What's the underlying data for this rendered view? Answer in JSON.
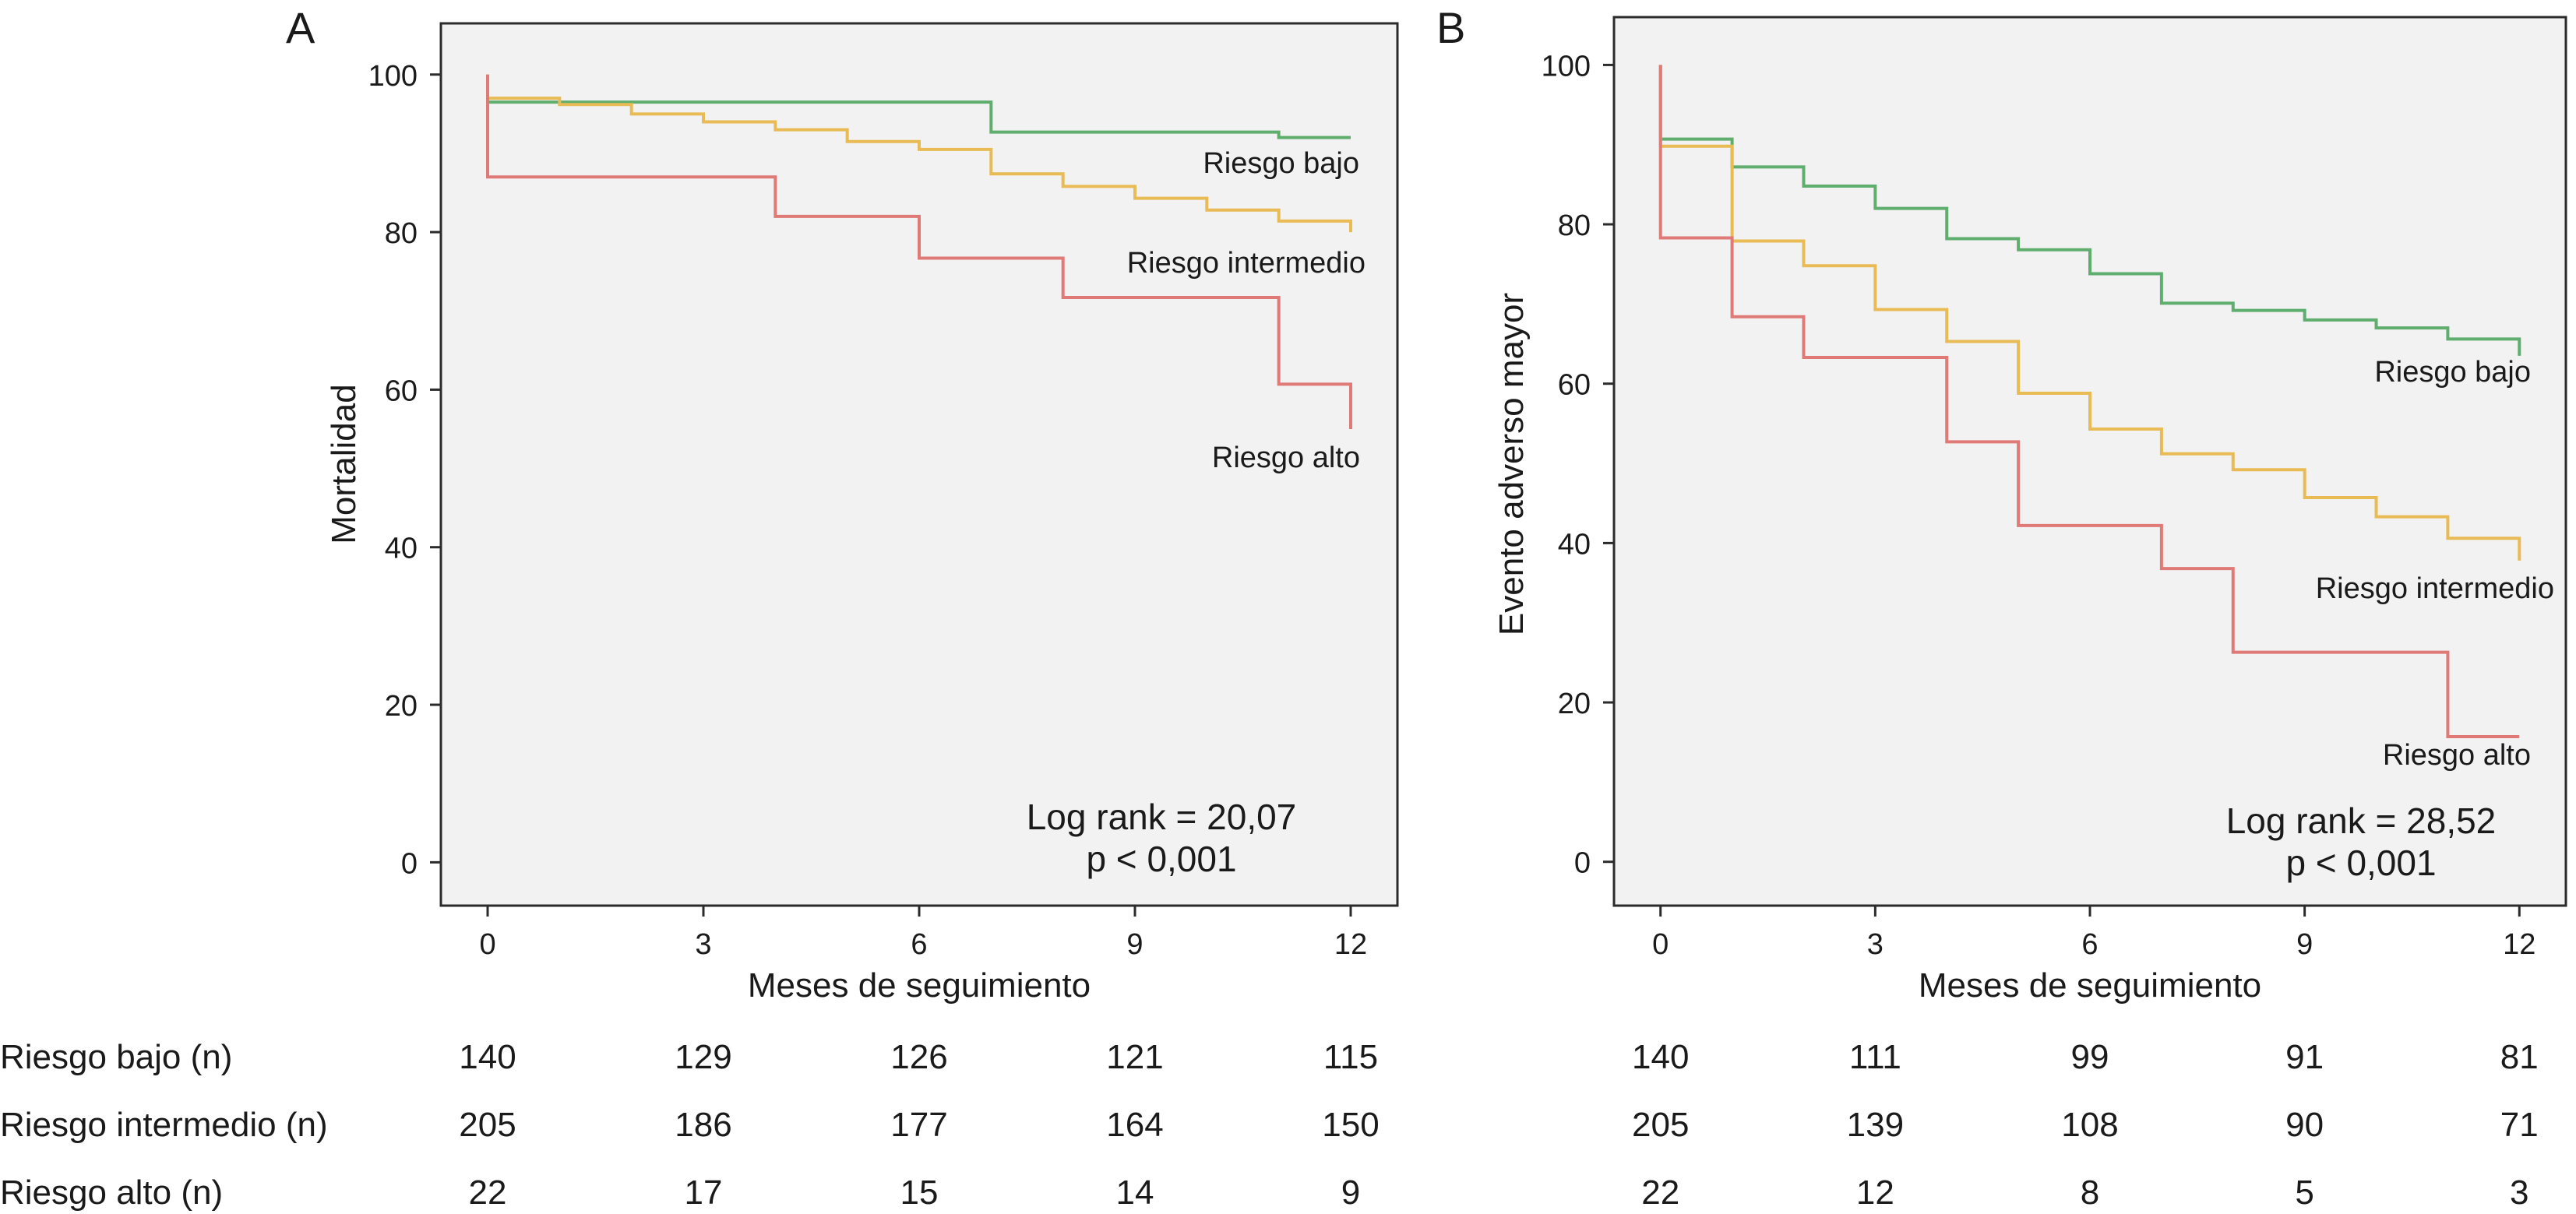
{
  "chart_data": [
    {
      "panel_label": "A",
      "type": "line",
      "ylabel": "Mortalidad",
      "xlabel": "Meses de seguimiento",
      "xticks": [
        0,
        3,
        6,
        9,
        12
      ],
      "yticks": [
        0,
        20,
        40,
        60,
        80,
        100
      ],
      "xlim": [
        -0.65,
        12.65
      ],
      "ylim": [
        -5.5,
        106.5
      ],
      "stat_line1": "Log rank = 20,07",
      "stat_line2": "p < 0,001",
      "series": [
        {
          "name": "Riesgo bajo",
          "color": "#5fae6e",
          "steps": [
            [
              0,
              96.5
            ],
            [
              7,
              92.7
            ],
            [
              11,
              92.0
            ],
            [
              12,
              92.0
            ]
          ],
          "label_at": [
            12,
            92
          ]
        },
        {
          "name": "Riesgo intermedio",
          "color": "#e8bb55",
          "steps": [
            [
              0,
              97.0
            ],
            [
              1,
              96.2
            ],
            [
              2,
              95.0
            ],
            [
              3,
              94.0
            ],
            [
              4,
              93.0
            ],
            [
              5,
              91.5
            ],
            [
              6,
              90.5
            ],
            [
              7,
              87.4
            ],
            [
              8,
              85.8
            ],
            [
              9,
              84.3
            ],
            [
              10,
              82.8
            ],
            [
              11,
              81.4
            ],
            [
              12,
              80.0
            ]
          ],
          "label_at": [
            12,
            80
          ]
        },
        {
          "name": "Riesgo alto",
          "color": "#df7a77",
          "steps": [
            [
              0,
              87.0
            ],
            [
              4,
              82.0
            ],
            [
              6,
              76.7
            ],
            [
              8,
              71.7
            ],
            [
              11,
              60.7
            ],
            [
              12,
              55.0
            ]
          ],
          "label_at": [
            12,
            55
          ]
        }
      ],
      "at_risk_label": "",
      "at_risk": [
        {
          "name": "Riesgo bajo (n)",
          "values": [
            140,
            129,
            126,
            121,
            115
          ]
        },
        {
          "name": "Riesgo intermedio (n)",
          "values": [
            205,
            186,
            177,
            164,
            150
          ]
        },
        {
          "name": "Riesgo alto (n)",
          "values": [
            22,
            17,
            15,
            14,
            9
          ]
        }
      ]
    },
    {
      "panel_label": "B",
      "type": "line",
      "ylabel": "Evento adverso mayor",
      "xlabel": "Meses de seguimiento",
      "xticks": [
        0,
        3,
        6,
        9,
        12
      ],
      "yticks": [
        0,
        20,
        40,
        60,
        80,
        100
      ],
      "xlim": [
        -0.65,
        12.65
      ],
      "ylim": [
        -5.5,
        106
      ],
      "stat_line1": "Log rank = 28,52",
      "stat_line2": "p < 0,001",
      "series": [
        {
          "name": "Riesgo bajo",
          "color": "#5fae6e",
          "steps": [
            [
              0,
              90.7
            ],
            [
              1,
              87.2
            ],
            [
              2,
              84.8
            ],
            [
              3,
              82.0
            ],
            [
              4,
              78.2
            ],
            [
              5,
              76.8
            ],
            [
              6,
              73.8
            ],
            [
              7,
              70.1
            ],
            [
              8,
              69.2
            ],
            [
              9,
              68.0
            ],
            [
              10,
              67.0
            ],
            [
              11,
              65.6
            ],
            [
              12,
              63.5
            ]
          ],
          "label_at": [
            12,
            63
          ]
        },
        {
          "name": "Riesgo intermedio",
          "color": "#e8bb55",
          "steps": [
            [
              0,
              89.8
            ],
            [
              1,
              77.9
            ],
            [
              2,
              74.8
            ],
            [
              3,
              69.3
            ],
            [
              4,
              65.3
            ],
            [
              5,
              58.8
            ],
            [
              6,
              54.3
            ],
            [
              7,
              51.2
            ],
            [
              8,
              49.2
            ],
            [
              9,
              45.7
            ],
            [
              10,
              43.3
            ],
            [
              11,
              40.6
            ],
            [
              12,
              37.8
            ]
          ],
          "label_at": [
            12,
            37
          ]
        },
        {
          "name": "Riesgo alto",
          "color": "#df7a77",
          "steps": [
            [
              0,
              78.3
            ],
            [
              1,
              68.4
            ],
            [
              2,
              63.3
            ],
            [
              4,
              52.7
            ],
            [
              5,
              42.2
            ],
            [
              7,
              36.8
            ],
            [
              8,
              26.3
            ],
            [
              11,
              15.7
            ],
            [
              12,
              15.7
            ]
          ],
          "label_at": [
            12,
            15
          ]
        }
      ],
      "at_risk": [
        {
          "name": "Riesgo bajo (n)",
          "values": [
            140,
            111,
            99,
            91,
            81
          ]
        },
        {
          "name": "Riesgo intermedio (n)",
          "values": [
            205,
            139,
            108,
            90,
            71
          ]
        },
        {
          "name": "Riesgo alto (n)",
          "values": [
            22,
            12,
            8,
            5,
            3
          ]
        }
      ]
    }
  ]
}
